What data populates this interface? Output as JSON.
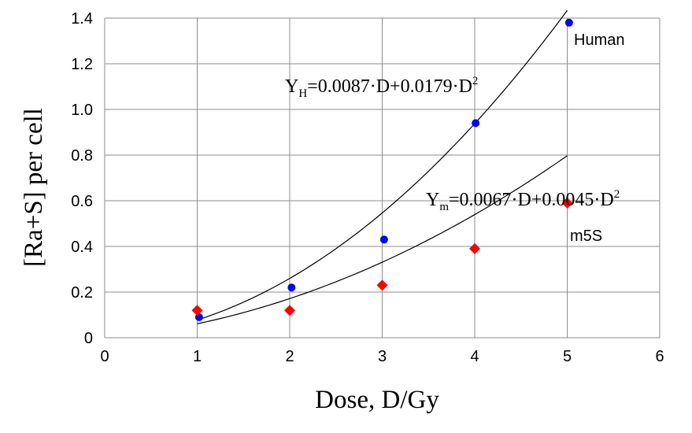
{
  "chart_data": {
    "type": "scatter",
    "xlabel": "Dose, D/Gy",
    "ylabel": "[Ra+S] per cell",
    "xlim": [
      0,
      6
    ],
    "ylim": [
      0,
      1.4
    ],
    "x_ticks": [
      "0",
      "1",
      "2",
      "3",
      "4",
      "5",
      "6"
    ],
    "y_ticks": [
      "0",
      "0.2",
      "0.4",
      "0.6",
      "0.8",
      "1.0",
      "1.2",
      "1.4"
    ],
    "grid": "major",
    "series": [
      {
        "name": "Human",
        "color": "#0000ff",
        "marker": "circle",
        "x": [
          1.02,
          2.02,
          3.02,
          4.01,
          5.02
        ],
        "y": [
          0.09,
          0.22,
          0.43,
          0.94,
          1.38
        ],
        "fit": {
          "equation_main": "Y",
          "equation_sub": "H",
          "equation_body": "=0.0087·D+0.0179·D",
          "equation_sup": "2",
          "a": 0.0087,
          "b": 0.0179,
          "x_range": [
            1,
            5
          ]
        }
      },
      {
        "name": "m5S",
        "color": "#ff0000",
        "marker": "diamond",
        "x": [
          1.0,
          2.0,
          3.0,
          4.0,
          5.0
        ],
        "y": [
          0.12,
          0.12,
          0.23,
          0.39,
          0.59
        ],
        "fit": {
          "equation_main": "Y",
          "equation_sub": "m",
          "equation_body": "=0.0067·D+0.0045·D",
          "equation_sup": "2",
          "a": 0.0067,
          "b": 0.0045,
          "x_range": [
            1,
            5
          ]
        }
      }
    ]
  }
}
